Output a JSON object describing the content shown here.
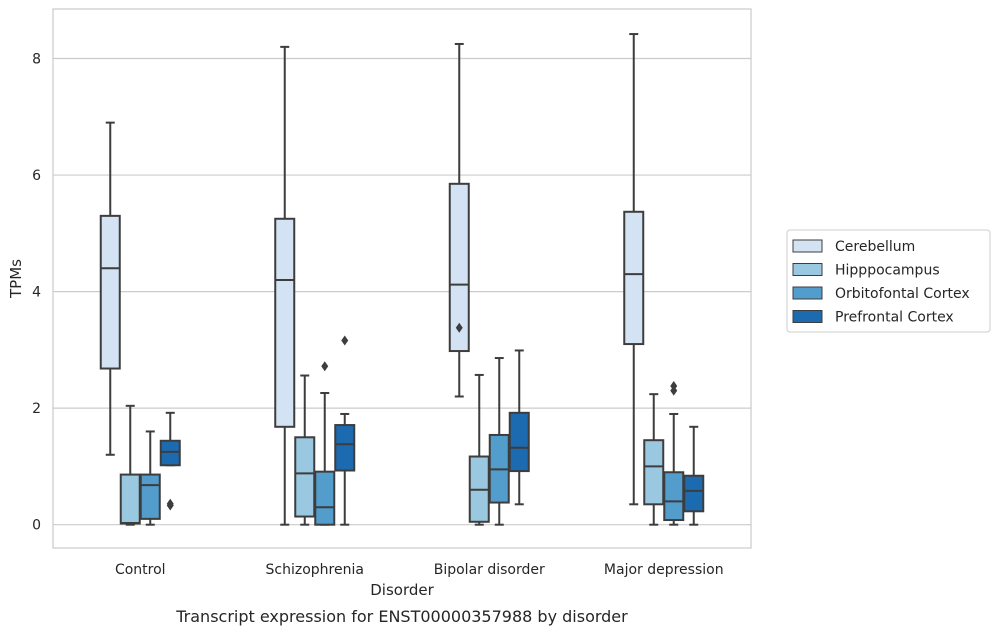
{
  "chart_data": {
    "type": "box",
    "title": "",
    "caption": "Transcript expression for ENST00000357988 by disorder",
    "xlabel": "Disorder",
    "ylabel": "TPMs",
    "ylim": [
      -0.4,
      8.85
    ],
    "yticks": [
      0,
      2,
      4,
      6,
      8
    ],
    "grid": "horizontal",
    "legend_position": "right",
    "categories": [
      "Control",
      "Schizophrenia",
      "Bipolar disorder",
      "Major depression"
    ],
    "series": [
      {
        "name": "Cerebellum",
        "color": "#d3e3f3",
        "boxes": [
          {
            "whisker_low": 1.2,
            "q1": 2.68,
            "median": 4.4,
            "q3": 5.3,
            "whisker_high": 6.9,
            "outliers": []
          },
          {
            "whisker_low": 0.0,
            "q1": 1.68,
            "median": 4.2,
            "q3": 5.25,
            "whisker_high": 8.2,
            "outliers": []
          },
          {
            "whisker_low": 2.2,
            "q1": 2.98,
            "median": 4.12,
            "q3": 5.85,
            "whisker_high": 8.25,
            "outliers": [
              3.38
            ]
          },
          {
            "whisker_low": 0.35,
            "q1": 3.1,
            "median": 4.3,
            "q3": 5.37,
            "whisker_high": 8.42,
            "outliers": []
          }
        ]
      },
      {
        "name": "Hipppocampus",
        "color": "#9ac8e0",
        "boxes": [
          {
            "whisker_low": 0.0,
            "q1": 0.02,
            "median": 0.03,
            "q3": 0.86,
            "whisker_high": 2.04,
            "outliers": []
          },
          {
            "whisker_low": 0.0,
            "q1": 0.14,
            "median": 0.88,
            "q3": 1.5,
            "whisker_high": 2.56,
            "outliers": []
          },
          {
            "whisker_low": 0.0,
            "q1": 0.05,
            "median": 0.6,
            "q3": 1.17,
            "whisker_high": 2.57,
            "outliers": []
          },
          {
            "whisker_low": 0.0,
            "q1": 0.35,
            "median": 1.0,
            "q3": 1.45,
            "whisker_high": 2.24,
            "outliers": []
          }
        ]
      },
      {
        "name": "Orbitofontal Cortex",
        "color": "#529dcc",
        "boxes": [
          {
            "whisker_low": 0.0,
            "q1": 0.1,
            "median": 0.68,
            "q3": 0.86,
            "whisker_high": 1.6,
            "outliers": []
          },
          {
            "whisker_low": 0.0,
            "q1": 0.0,
            "median": 0.3,
            "q3": 0.91,
            "whisker_high": 2.26,
            "outliers": [
              2.72
            ]
          },
          {
            "whisker_low": 0.0,
            "q1": 0.38,
            "median": 0.95,
            "q3": 1.54,
            "whisker_high": 2.86,
            "outliers": []
          },
          {
            "whisker_low": 0.0,
            "q1": 0.08,
            "median": 0.4,
            "q3": 0.9,
            "whisker_high": 1.9,
            "outliers": [
              2.3,
              2.38
            ]
          }
        ]
      },
      {
        "name": "Prefrontal Cortex",
        "color": "#1c6aaf",
        "boxes": [
          {
            "whisker_low": 1.02,
            "q1": 1.02,
            "median": 1.25,
            "q3": 1.44,
            "whisker_high": 1.92,
            "outliers": [
              0.33,
              0.36
            ]
          },
          {
            "whisker_low": 0.0,
            "q1": 0.93,
            "median": 1.38,
            "q3": 1.71,
            "whisker_high": 1.9,
            "outliers": [
              3.16
            ]
          },
          {
            "whisker_low": 0.35,
            "q1": 0.92,
            "median": 1.32,
            "q3": 1.92,
            "whisker_high": 2.99,
            "outliers": []
          },
          {
            "whisker_low": 0.0,
            "q1": 0.23,
            "median": 0.58,
            "q3": 0.84,
            "whisker_high": 1.68,
            "outliers": []
          }
        ]
      }
    ]
  }
}
